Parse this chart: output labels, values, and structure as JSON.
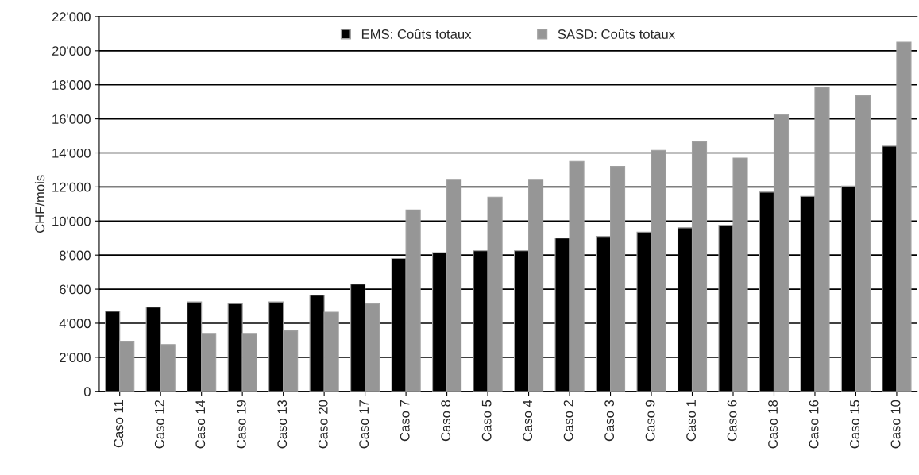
{
  "chart_data": {
    "type": "bar",
    "ylabel": "CHF/mois",
    "categories": [
      "Caso 11",
      "Caso 12",
      "Caso 14",
      "Caso 19",
      "Caso 13",
      "Caso 20",
      "Caso 17",
      "Caso 7",
      "Caso 8",
      "Caso 5",
      "Caso 4",
      "Caso 2",
      "Caso 3",
      "Caso 9",
      "Caso 1",
      "Caso 6",
      "Caso 18",
      "Caso 16",
      "Caso 15",
      "Caso 10"
    ],
    "series": [
      {
        "name": "EMS: Coûts totaux",
        "color": "#000000",
        "values": [
          4700,
          4950,
          5250,
          5150,
          5250,
          5650,
          6300,
          7800,
          8150,
          8250,
          8250,
          9000,
          9100,
          9350,
          9600,
          9750,
          11700,
          11450,
          12050,
          14400
        ]
      },
      {
        "name": "SASD: Coûts totaux",
        "color": "#969696",
        "values": [
          2950,
          2750,
          3400,
          3400,
          3550,
          4650,
          5150,
          10650,
          12450,
          11400,
          12450,
          13500,
          13200,
          14150,
          14650,
          13700,
          16250,
          17850,
          17350,
          20500
        ]
      }
    ],
    "ylim": [
      0,
      22000
    ],
    "yticks": [
      0,
      {
        "value": 2000,
        "label": "2'000"
      },
      {
        "value": 4000,
        "label": "4'000"
      },
      {
        "value": 6000,
        "label": "6'000"
      },
      {
        "value": 8000,
        "label": "8'000"
      },
      {
        "value": 10000,
        "label": "10'000"
      },
      {
        "value": 12000,
        "label": "12'000"
      },
      {
        "value": 14000,
        "label": "14'000"
      },
      {
        "value": 16000,
        "label": "16'000"
      },
      {
        "value": 18000,
        "label": "18'000"
      },
      {
        "value": 20000,
        "label": "20'000"
      },
      {
        "value": 22000,
        "label": "22'000"
      }
    ],
    "grid": "y",
    "legend": "top"
  }
}
